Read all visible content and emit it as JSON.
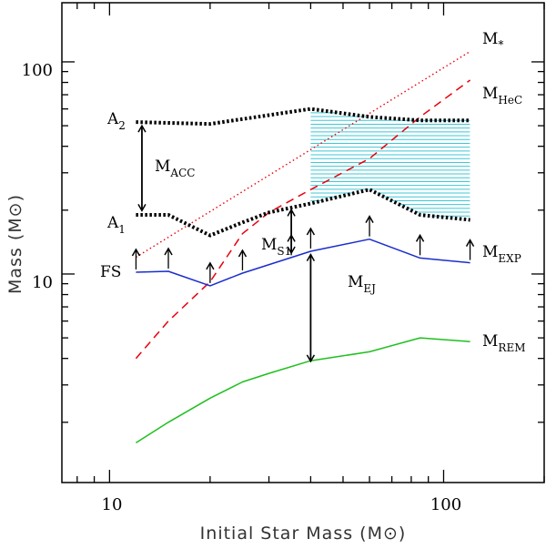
{
  "chart_data": {
    "type": "line",
    "title": "",
    "xlabel": "Initial Star Mass (M⊙)",
    "ylabel": "Mass (M⊙)",
    "xscale": "log",
    "yscale": "log",
    "xlim": [
      7.2,
      200
    ],
    "ylim": [
      1.04,
      190
    ],
    "x_tick_labels": [
      "10",
      "100"
    ],
    "y_tick_labels": [
      "10",
      "100"
    ],
    "colors": {
      "mstar": "#e8000b",
      "mhec": "#e8000b",
      "mexp": "#1a2dcc",
      "mrem": "#1fbf1f",
      "a_bounds": "#000000",
      "hatch": "#3cc8d6"
    },
    "series": [
      {
        "name": "M*",
        "style": "dotted",
        "x": [
          12,
          120
        ],
        "y": [
          12,
          112
        ]
      },
      {
        "name": "MHeC",
        "style": "dashed",
        "x": [
          12,
          15,
          20,
          25,
          30,
          40,
          60,
          85,
          120
        ],
        "y": [
          4.0,
          6.0,
          9.2,
          15.5,
          19.5,
          25,
          35,
          55,
          82
        ]
      },
      {
        "name": "MEXP",
        "style": "solid",
        "x": [
          12,
          15,
          20,
          25,
          40,
          60,
          85,
          120
        ],
        "y": [
          10.2,
          10.3,
          8.8,
          10.1,
          12.8,
          14.6,
          11.9,
          11.3
        ]
      },
      {
        "name": "MREM",
        "style": "solid",
        "x": [
          12,
          15,
          20,
          25,
          30,
          40,
          60,
          85,
          120
        ],
        "y": [
          1.6,
          2.0,
          2.6,
          3.1,
          3.4,
          3.9,
          4.3,
          5.0,
          4.8
        ]
      },
      {
        "name": "A2",
        "style": "thick-dotted",
        "x": [
          12,
          20,
          40,
          60,
          85,
          120
        ],
        "y": [
          52,
          51,
          60,
          55,
          53,
          53
        ]
      },
      {
        "name": "A1",
        "style": "thick-dotted",
        "x": [
          12,
          15,
          20,
          25,
          30,
          40,
          60,
          85,
          120
        ],
        "y": [
          19,
          19,
          15.2,
          17.5,
          19.5,
          21.5,
          25,
          19,
          18
        ]
      }
    ],
    "hatched_region": {
      "x": [
        40,
        60,
        85,
        120
      ],
      "lower": [
        21.5,
        25,
        19,
        18
      ],
      "upper": [
        60,
        55,
        53,
        53
      ]
    },
    "upward_arrows": {
      "x": [
        12,
        15,
        20,
        25,
        35,
        40,
        60,
        85,
        120
      ],
      "base": [
        10.2,
        10.3,
        8.8,
        10.1,
        11.9,
        12.8,
        14.6,
        11.9,
        11.3
      ]
    },
    "double_arrows": [
      {
        "name": "MACC",
        "x": 12.5,
        "y_from": 19.5,
        "y_to": 51
      },
      {
        "name": "MS1",
        "x": 35,
        "y_from": 12.3,
        "y_to": 20.5
      },
      {
        "name": "MEJ",
        "x": 40,
        "y_from": 3.8,
        "y_to": 12.6
      }
    ],
    "labels": {
      "m_star": {
        "main": "M",
        "sub": "*"
      },
      "m_hec": {
        "main": "M",
        "sub": "HeC"
      },
      "m_exp": {
        "main": "M",
        "sub": "EXP"
      },
      "m_rem": {
        "main": "M",
        "sub": "REM"
      },
      "a2": {
        "main": "A",
        "sub": "2"
      },
      "a1": {
        "main": "A",
        "sub": "1"
      },
      "m_acc": {
        "main": "M",
        "sub": "ACC"
      },
      "m_s1": {
        "main": "M",
        "sub": "S1"
      },
      "m_ej": {
        "main": "M",
        "sub": "EJ"
      },
      "fs": {
        "main": "FS"
      }
    }
  }
}
